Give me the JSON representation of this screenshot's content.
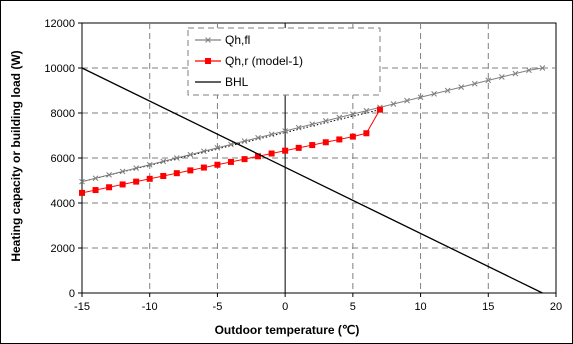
{
  "chart_data": {
    "type": "line",
    "title": "",
    "xlabel": "Outdoor temperature (℃)",
    "ylabel": "Heating capacity or building load (W)",
    "xlim": [
      -15,
      20
    ],
    "ylim": [
      0,
      12000
    ],
    "xticks": [
      -15,
      -10,
      -5,
      0,
      5,
      10,
      15,
      20
    ],
    "yticks": [
      0,
      2000,
      4000,
      6000,
      8000,
      10000,
      12000
    ],
    "grid": true,
    "legend_position": "top-center",
    "series": [
      {
        "name": "Qh,fl",
        "color": "#808080",
        "marker": "x",
        "x": [
          -15,
          -14,
          -13,
          -12,
          -11,
          -10,
          -9,
          -8,
          -7,
          -6,
          -5,
          -4,
          -3,
          -2,
          -1,
          0,
          1,
          2,
          3,
          4,
          5,
          6,
          7,
          8,
          9,
          10,
          11,
          12,
          13,
          14,
          15,
          16,
          17,
          18,
          19
        ],
        "y": [
          4950,
          5100,
          5250,
          5400,
          5550,
          5700,
          5850,
          6000,
          6150,
          6300,
          6450,
          6600,
          6750,
          6900,
          7050,
          7200,
          7350,
          7500,
          7650,
          7800,
          7950,
          8100,
          8250,
          8400,
          8550,
          8700,
          8850,
          9000,
          9150,
          9300,
          9450,
          9600,
          9750,
          9900,
          10000
        ]
      },
      {
        "name": "Qh,r (model-1)",
        "color": "#ff0000",
        "marker": "square",
        "x": [
          -15,
          -14,
          -13,
          -12,
          -11,
          -10,
          -9,
          -8,
          -7,
          -6,
          -5,
          -4,
          -3,
          -2,
          -1,
          0,
          1,
          2,
          3,
          4,
          5,
          6,
          7
        ],
        "y": [
          4450,
          4575,
          4700,
          4825,
          4950,
          5075,
          5200,
          5325,
          5450,
          5575,
          5700,
          5825,
          5950,
          6075,
          6200,
          6325,
          6450,
          6575,
          6700,
          6825,
          6950,
          7100,
          8150
        ]
      },
      {
        "name": "BHL",
        "color": "#000000",
        "marker": "none",
        "x": [
          -15,
          19
        ],
        "y": [
          10000,
          0
        ]
      }
    ],
    "annotations": [
      {
        "type": "dotted-line",
        "color": "#000000",
        "x": [
          -15,
          7
        ],
        "y": [
          4950,
          8150
        ]
      }
    ]
  }
}
